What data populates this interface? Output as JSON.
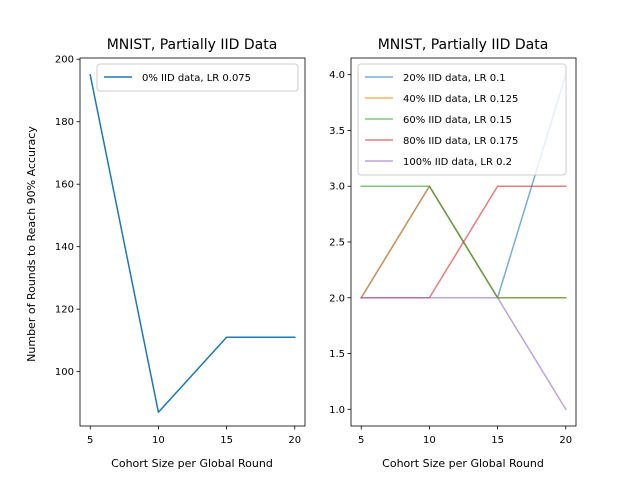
{
  "chart_data": [
    {
      "type": "line",
      "title": "MNIST, Partially IID Data",
      "xlabel": "Cohort Size per Global Round",
      "ylabel": "Number of Rounds to Reach 90% Accuracy",
      "x": [
        5,
        10,
        15,
        20
      ],
      "xticks": [
        5,
        10,
        15,
        20
      ],
      "xlim": [
        4.25,
        20.75
      ],
      "ylim": [
        82.6,
        200.4
      ],
      "yticks": [
        100,
        120,
        140,
        160,
        180,
        200
      ],
      "ytick_labels": [
        "100",
        "120",
        "140",
        "160",
        "180",
        "200"
      ],
      "legend_placement": "upper right",
      "series": [
        {
          "name": "0% IID data, LR 0.075",
          "values": [
            195,
            87,
            111,
            111
          ],
          "color": "#1f77b4"
        }
      ]
    },
    {
      "type": "line",
      "title": "MNIST, Partially IID Data",
      "xlabel": "Cohort Size per Global Round",
      "ylabel": "",
      "x": [
        5,
        10,
        15,
        20
      ],
      "xticks": [
        5,
        10,
        15,
        20
      ],
      "xlim": [
        4.25,
        20.75
      ],
      "ylim": [
        0.85,
        4.15
      ],
      "yticks": [
        1.0,
        1.5,
        2.0,
        2.5,
        3.0,
        3.5,
        4.0
      ],
      "ytick_labels": [
        "1.0",
        "1.5",
        "2.0",
        "2.5",
        "3.0",
        "3.5",
        "4.0"
      ],
      "legend_placement": "upper left",
      "series": [
        {
          "name": "20% IID data, LR 0.1",
          "values": [
            2,
            3,
            2,
            4
          ],
          "color": "#1f77b4"
        },
        {
          "name": "40% IID data, LR 0.125",
          "values": [
            2,
            3,
            2,
            2
          ],
          "color": "#ff7f0e"
        },
        {
          "name": "60% IID data, LR 0.15",
          "values": [
            3,
            3,
            2,
            2
          ],
          "color": "#2ca02c"
        },
        {
          "name": "80% IID data, LR 0.175",
          "values": [
            2,
            2,
            3,
            3
          ],
          "color": "#d62728"
        },
        {
          "name": "100% IID data, LR 0.2",
          "values": [
            2,
            2,
            2,
            1
          ],
          "color": "#9467bd"
        }
      ]
    }
  ]
}
